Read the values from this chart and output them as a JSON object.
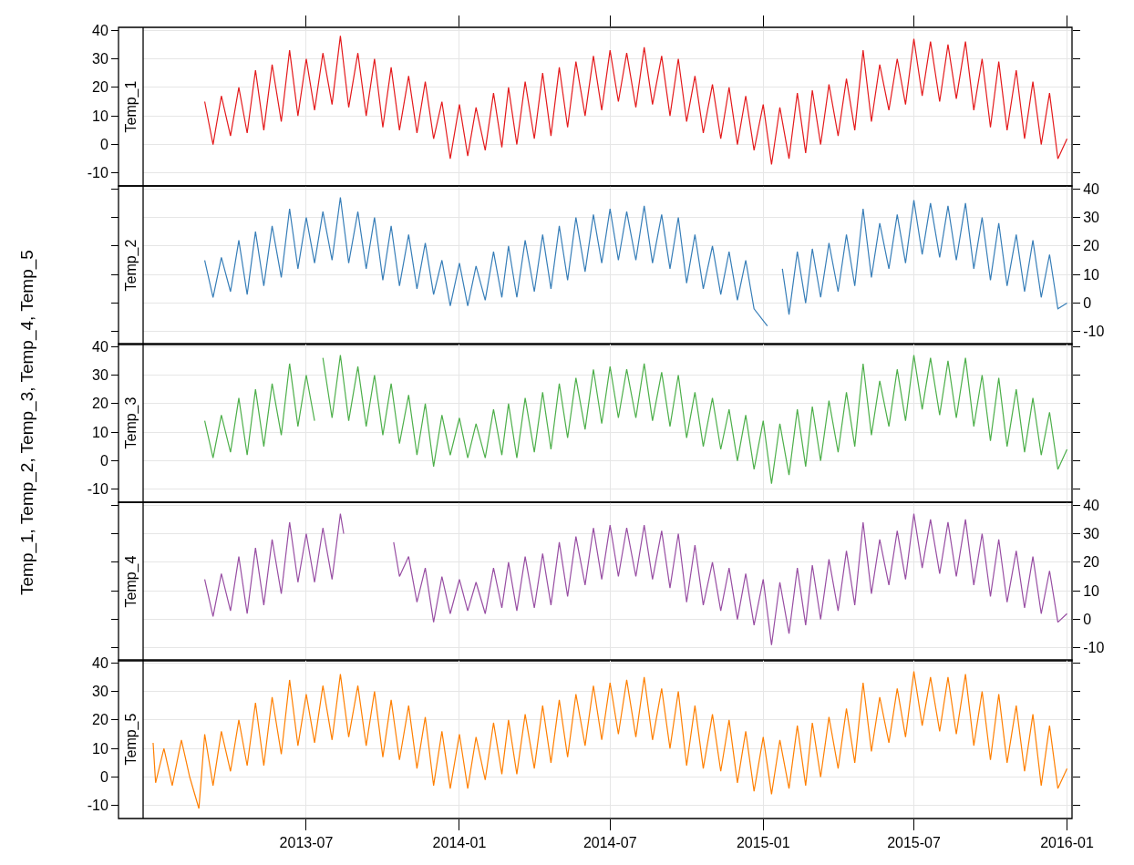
{
  "chart_data": [
    {
      "type": "line",
      "xlim": [
        "2012-12-17",
        "2016-01-07"
      ],
      "xticks": [
        "2013-07",
        "2014-01",
        "2014-07",
        "2015-01",
        "2015-07",
        "2016-01"
      ],
      "ylim": [
        -14.5,
        41
      ],
      "yticks": [
        -10,
        0,
        10,
        20,
        30,
        40
      ],
      "grid": true,
      "tick_labels": "y",
      "series": [
        {
          "name": "Temp_1",
          "color": "#e41a1c",
          "x": [
            "2013-03-01",
            "2013-03-11",
            "2013-03-21",
            "2013-04-01",
            "2013-04-11",
            "2013-04-21",
            "2013-05-01",
            "2013-05-11",
            "2013-05-21",
            "2013-06-01",
            "2013-06-11",
            "2013-06-21",
            "2013-07-01",
            "2013-07-11",
            "2013-07-21",
            "2013-08-01",
            "2013-08-11",
            "2013-08-21",
            "2013-09-01",
            "2013-09-11",
            "2013-09-21",
            "2013-10-01",
            "2013-10-11",
            "2013-10-21",
            "2013-11-01",
            "2013-11-11",
            "2013-11-21",
            "2013-12-01",
            "2013-12-11",
            "2013-12-21",
            "2014-01-01",
            "2014-01-11",
            "2014-01-21",
            "2014-02-01",
            "2014-02-11",
            "2014-02-21",
            "2014-03-01",
            "2014-03-11",
            "2014-03-21",
            "2014-04-01",
            "2014-04-11",
            "2014-04-21",
            "2014-05-01",
            "2014-05-11",
            "2014-05-21",
            "2014-06-01",
            "2014-06-11",
            "2014-06-21",
            "2014-07-01",
            "2014-07-11",
            "2014-07-21",
            "2014-08-01",
            "2014-08-11",
            "2014-08-21",
            "2014-09-01",
            "2014-09-11",
            "2014-09-21",
            "2014-10-01",
            "2014-10-11",
            "2014-10-21",
            "2014-11-01",
            "2014-11-11",
            "2014-11-21",
            "2014-12-01",
            "2014-12-11",
            "2014-12-21",
            "2015-01-01",
            "2015-01-11",
            "2015-01-21",
            "2015-02-01",
            "2015-02-11",
            "2015-02-21",
            "2015-03-01",
            "2015-03-11",
            "2015-03-21",
            "2015-04-01",
            "2015-04-11",
            "2015-04-21",
            "2015-05-01",
            "2015-05-11",
            "2015-05-21",
            "2015-06-01",
            "2015-06-11",
            "2015-06-21",
            "2015-07-01",
            "2015-07-11",
            "2015-07-21",
            "2015-08-01",
            "2015-08-11",
            "2015-08-21",
            "2015-09-01",
            "2015-09-11",
            "2015-09-21",
            "2015-10-01",
            "2015-10-11",
            "2015-10-21",
            "2015-11-01",
            "2015-11-11",
            "2015-11-21",
            "2015-12-01",
            "2015-12-11",
            "2015-12-21",
            "2016-01-01"
          ],
          "values": [
            15,
            0,
            17,
            3,
            20,
            4,
            26,
            5,
            28,
            8,
            33,
            10,
            30,
            12,
            32,
            14,
            38,
            13,
            32,
            10,
            30,
            6,
            27,
            5,
            24,
            4,
            22,
            2,
            15,
            -5,
            14,
            -4,
            13,
            -2,
            18,
            -1,
            20,
            0,
            22,
            2,
            25,
            3,
            27,
            6,
            29,
            10,
            31,
            12,
            33,
            15,
            32,
            13,
            34,
            14,
            31,
            10,
            30,
            8,
            24,
            4,
            21,
            2,
            20,
            0,
            17,
            -2,
            14,
            -7,
            13,
            -5,
            18,
            -3,
            19,
            0,
            21,
            3,
            23,
            5,
            33,
            8,
            28,
            12,
            30,
            14,
            37,
            17,
            36,
            15,
            35,
            16,
            36,
            12,
            30,
            6,
            29,
            5,
            26,
            2,
            22,
            0,
            18,
            -5,
            2
          ]
        }
      ]
    },
    {
      "type": "line",
      "xlim": [
        "2012-12-17",
        "2016-01-07"
      ],
      "xticks": [
        "2013-07",
        "2014-01",
        "2014-07",
        "2015-01",
        "2015-07",
        "2016-01"
      ],
      "y2lim": [
        -14.5,
        41
      ],
      "y2ticks": [
        -10,
        0,
        10,
        20,
        30,
        40
      ],
      "grid": true,
      "tick_labels": "y",
      "series": [
        {
          "name": "Temp_2",
          "color": "#377eb8",
          "axis": "y2",
          "x": [
            "2013-03-01",
            "2013-03-11",
            "2013-03-21",
            "2013-04-01",
            "2013-04-11",
            "2013-04-21",
            "2013-05-01",
            "2013-05-11",
            "2013-05-21",
            "2013-06-01",
            "2013-06-11",
            "2013-06-21",
            "2013-07-01",
            "2013-07-11",
            "2013-07-21",
            "2013-08-01",
            "2013-08-11",
            "2013-08-21",
            "2013-09-01",
            "2013-09-11",
            "2013-09-21",
            "2013-10-01",
            "2013-10-11",
            "2013-10-21",
            "2013-11-01",
            "2013-11-11",
            "2013-11-21",
            "2013-12-01",
            "2013-12-11",
            "2013-12-21",
            "2014-01-01",
            "2014-01-11",
            "2014-01-21",
            "2014-02-01",
            "2014-02-11",
            "2014-02-21",
            "2014-03-01",
            "2014-03-11",
            "2014-03-21",
            "2014-04-01",
            "2014-04-11",
            "2014-04-21",
            "2014-05-01",
            "2014-05-11",
            "2014-05-21",
            "2014-06-01",
            "2014-06-11",
            "2014-06-21",
            "2014-07-01",
            "2014-07-11",
            "2014-07-21",
            "2014-08-01",
            "2014-08-11",
            "2014-08-21",
            "2014-09-01",
            "2014-09-11",
            "2014-09-21",
            "2014-10-01",
            "2014-10-11",
            "2014-10-21",
            "2014-11-01",
            "2014-11-11",
            "2014-11-21",
            "2014-12-01",
            "2014-12-11",
            "2014-12-21",
            "2015-01-06",
            "2015-01-15",
            "2015-01-24",
            "2015-02-01",
            "2015-02-11",
            "2015-02-21",
            "2015-03-01",
            "2015-03-11",
            "2015-03-21",
            "2015-04-01",
            "2015-04-11",
            "2015-04-21",
            "2015-05-01",
            "2015-05-11",
            "2015-05-21",
            "2015-06-01",
            "2015-06-11",
            "2015-06-21",
            "2015-07-01",
            "2015-07-11",
            "2015-07-21",
            "2015-08-01",
            "2015-08-11",
            "2015-08-21",
            "2015-09-01",
            "2015-09-11",
            "2015-09-21",
            "2015-10-01",
            "2015-10-11",
            "2015-10-21",
            "2015-11-01",
            "2015-11-11",
            "2015-11-21",
            "2015-12-01",
            "2015-12-11",
            "2015-12-21",
            "2016-01-01"
          ],
          "values": [
            15,
            2,
            16,
            4,
            22,
            3,
            25,
            6,
            27,
            9,
            33,
            12,
            30,
            14,
            32,
            15,
            37,
            14,
            32,
            12,
            30,
            8,
            27,
            6,
            24,
            5,
            21,
            3,
            15,
            -1,
            14,
            -1,
            13,
            1,
            18,
            2,
            20,
            2,
            22,
            4,
            24,
            5,
            27,
            8,
            30,
            11,
            31,
            14,
            33,
            15,
            32,
            15,
            34,
            14,
            31,
            12,
            30,
            7,
            24,
            5,
            20,
            3,
            18,
            1,
            15,
            -2,
            -8,
            null,
            12,
            -4,
            18,
            0,
            19,
            2,
            21,
            4,
            24,
            6,
            33,
            9,
            28,
            12,
            31,
            14,
            36,
            17,
            35,
            16,
            34,
            15,
            35,
            12,
            30,
            8,
            28,
            6,
            24,
            4,
            22,
            2,
            17,
            -2,
            0
          ]
        }
      ]
    },
    {
      "type": "line",
      "ylabel": "Temp_1, Temp_2, Temp_3, Temp_4, Temp_5",
      "xlim": [
        "2012-12-17",
        "2016-01-07"
      ],
      "xticks": [
        "2013-07",
        "2014-01",
        "2014-07",
        "2015-01",
        "2015-07",
        "2016-01"
      ],
      "ylim": [
        -14.5,
        41
      ],
      "yticks": [
        -10,
        0,
        10,
        20,
        30,
        40
      ],
      "grid": true,
      "tick_labels": "y",
      "series": [
        {
          "name": "Temp_3",
          "color": "#4daf4a",
          "x": [
            "2013-03-01",
            "2013-03-11",
            "2013-03-21",
            "2013-04-01",
            "2013-04-11",
            "2013-04-21",
            "2013-05-01",
            "2013-05-11",
            "2013-05-21",
            "2013-06-01",
            "2013-06-11",
            "2013-06-21",
            "2013-07-01",
            "2013-07-11",
            "2013-07-15",
            "2013-07-21",
            "2013-08-01",
            "2013-08-11",
            "2013-08-21",
            "2013-09-01",
            "2013-09-11",
            "2013-09-21",
            "2013-10-01",
            "2013-10-11",
            "2013-10-21",
            "2013-11-01",
            "2013-11-11",
            "2013-11-21",
            "2013-12-01",
            "2013-12-11",
            "2013-12-21",
            "2014-01-01",
            "2014-01-11",
            "2014-01-21",
            "2014-02-01",
            "2014-02-11",
            "2014-02-21",
            "2014-03-01",
            "2014-03-11",
            "2014-03-21",
            "2014-04-01",
            "2014-04-11",
            "2014-04-21",
            "2014-05-01",
            "2014-05-11",
            "2014-05-21",
            "2014-06-01",
            "2014-06-11",
            "2014-06-21",
            "2014-07-01",
            "2014-07-11",
            "2014-07-21",
            "2014-08-01",
            "2014-08-11",
            "2014-08-21",
            "2014-09-01",
            "2014-09-11",
            "2014-09-21",
            "2014-10-01",
            "2014-10-11",
            "2014-10-21",
            "2014-11-01",
            "2014-11-11",
            "2014-11-21",
            "2014-12-01",
            "2014-12-11",
            "2014-12-21",
            "2015-01-01",
            "2015-01-11",
            "2015-01-21",
            "2015-02-01",
            "2015-02-11",
            "2015-02-21",
            "2015-03-01",
            "2015-03-11",
            "2015-03-21",
            "2015-04-01",
            "2015-04-11",
            "2015-04-21",
            "2015-05-01",
            "2015-05-11",
            "2015-05-21",
            "2015-06-01",
            "2015-06-11",
            "2015-06-21",
            "2015-07-01",
            "2015-07-11",
            "2015-07-21",
            "2015-08-01",
            "2015-08-11",
            "2015-08-21",
            "2015-09-01",
            "2015-09-11",
            "2015-09-21",
            "2015-10-01",
            "2015-10-11",
            "2015-10-21",
            "2015-11-01",
            "2015-11-11",
            "2015-11-21",
            "2015-12-01",
            "2015-12-11",
            "2015-12-21",
            "2016-01-01"
          ],
          "values": [
            14,
            1,
            16,
            3,
            22,
            2,
            25,
            5,
            27,
            9,
            34,
            12,
            30,
            14,
            null,
            36,
            15,
            37,
            14,
            33,
            12,
            30,
            9,
            27,
            6,
            23,
            2,
            20,
            -2,
            16,
            2,
            15,
            1,
            13,
            1,
            18,
            2,
            20,
            1,
            22,
            3,
            24,
            4,
            27,
            8,
            29,
            11,
            32,
            13,
            33,
            15,
            32,
            15,
            34,
            14,
            31,
            12,
            30,
            8,
            24,
            5,
            22,
            4,
            18,
            0,
            16,
            -3,
            14,
            -8,
            13,
            -5,
            18,
            -2,
            19,
            0,
            21,
            3,
            24,
            5,
            34,
            9,
            28,
            12,
            32,
            14,
            37,
            18,
            36,
            16,
            35,
            15,
            36,
            12,
            30,
            7,
            29,
            5,
            25,
            3,
            22,
            2,
            17,
            -3,
            4
          ]
        }
      ]
    },
    {
      "type": "line",
      "xlim": [
        "2012-12-17",
        "2016-01-07"
      ],
      "xticks": [
        "2013-07",
        "2014-01",
        "2014-07",
        "2015-01",
        "2015-07",
        "2016-01"
      ],
      "y2lim": [
        -14.5,
        41
      ],
      "y2ticks": [
        -10,
        0,
        10,
        20,
        30,
        40
      ],
      "grid": true,
      "tick_labels": "y",
      "series": [
        {
          "name": "Temp_4",
          "color": "#984ea3",
          "axis": "y2",
          "x": [
            "2013-03-01",
            "2013-03-11",
            "2013-03-21",
            "2013-04-01",
            "2013-04-11",
            "2013-04-21",
            "2013-05-01",
            "2013-05-11",
            "2013-05-21",
            "2013-06-01",
            "2013-06-11",
            "2013-06-21",
            "2013-07-01",
            "2013-07-11",
            "2013-07-21",
            "2013-08-01",
            "2013-08-11",
            "2013-08-15",
            "2013-09-15",
            "2013-10-14",
            "2013-10-21",
            "2013-11-01",
            "2013-11-11",
            "2013-11-21",
            "2013-12-01",
            "2013-12-11",
            "2013-12-21",
            "2014-01-01",
            "2014-01-11",
            "2014-01-21",
            "2014-02-01",
            "2014-02-11",
            "2014-02-21",
            "2014-03-01",
            "2014-03-11",
            "2014-03-21",
            "2014-04-01",
            "2014-04-11",
            "2014-04-21",
            "2014-05-01",
            "2014-05-11",
            "2014-05-21",
            "2014-06-01",
            "2014-06-11",
            "2014-06-21",
            "2014-07-01",
            "2014-07-11",
            "2014-07-21",
            "2014-08-01",
            "2014-08-11",
            "2014-08-21",
            "2014-09-01",
            "2014-09-11",
            "2014-09-21",
            "2014-10-01",
            "2014-10-11",
            "2014-10-21",
            "2014-11-01",
            "2014-11-11",
            "2014-11-21",
            "2014-12-01",
            "2014-12-11",
            "2014-12-21",
            "2015-01-01",
            "2015-01-11",
            "2015-01-21",
            "2015-02-01",
            "2015-02-11",
            "2015-02-21",
            "2015-03-01",
            "2015-03-11",
            "2015-03-21",
            "2015-04-01",
            "2015-04-11",
            "2015-04-21",
            "2015-05-01",
            "2015-05-11",
            "2015-05-21",
            "2015-06-01",
            "2015-06-11",
            "2015-06-21",
            "2015-07-01",
            "2015-07-11",
            "2015-07-21",
            "2015-08-01",
            "2015-08-11",
            "2015-08-21",
            "2015-09-01",
            "2015-09-11",
            "2015-09-21",
            "2015-10-01",
            "2015-10-11",
            "2015-10-21",
            "2015-11-01",
            "2015-11-11",
            "2015-11-21",
            "2015-12-01",
            "2015-12-11",
            "2015-12-21",
            "2016-01-01"
          ],
          "values": [
            14,
            1,
            16,
            3,
            22,
            2,
            25,
            5,
            28,
            9,
            34,
            13,
            30,
            13,
            32,
            14,
            37,
            30,
            null,
            27,
            15,
            22,
            6,
            18,
            -1,
            15,
            2,
            14,
            3,
            13,
            2,
            18,
            4,
            20,
            3,
            22,
            4,
            23,
            5,
            27,
            8,
            29,
            12,
            32,
            14,
            33,
            15,
            32,
            15,
            33,
            14,
            31,
            11,
            30,
            6,
            26,
            5,
            20,
            3,
            18,
            0,
            16,
            -2,
            14,
            -9,
            13,
            -5,
            18,
            -2,
            19,
            0,
            21,
            3,
            24,
            5,
            34,
            9,
            28,
            12,
            31,
            14,
            37,
            18,
            35,
            16,
            34,
            15,
            35,
            12,
            30,
            8,
            28,
            6,
            24,
            4,
            22,
            2,
            17,
            -1,
            2
          ]
        }
      ]
    },
    {
      "type": "line",
      "xlim": [
        "2012-12-17",
        "2016-01-07"
      ],
      "xticks": [
        "2013-07",
        "2014-01",
        "2014-07",
        "2015-01",
        "2015-07",
        "2016-01"
      ],
      "ylim": [
        -14.5,
        41
      ],
      "yticks": [
        -10,
        0,
        10,
        20,
        30,
        40
      ],
      "grid": true,
      "series": [
        {
          "name": "Temp_5",
          "color": "#ff7f00",
          "x": [
            "2012-12-29",
            "2013-01-01",
            "2013-01-11",
            "2013-01-21",
            "2013-02-01",
            "2013-02-11",
            "2013-02-22",
            "2013-03-01",
            "2013-03-11",
            "2013-03-21",
            "2013-04-01",
            "2013-04-11",
            "2013-04-21",
            "2013-05-01",
            "2013-05-11",
            "2013-05-21",
            "2013-06-01",
            "2013-06-11",
            "2013-06-21",
            "2013-07-01",
            "2013-07-11",
            "2013-07-21",
            "2013-08-01",
            "2013-08-11",
            "2013-08-21",
            "2013-09-01",
            "2013-09-11",
            "2013-09-21",
            "2013-10-01",
            "2013-10-11",
            "2013-10-21",
            "2013-11-01",
            "2013-11-11",
            "2013-11-21",
            "2013-12-01",
            "2013-12-11",
            "2013-12-21",
            "2014-01-01",
            "2014-01-11",
            "2014-01-21",
            "2014-02-01",
            "2014-02-11",
            "2014-02-21",
            "2014-03-01",
            "2014-03-11",
            "2014-03-21",
            "2014-04-01",
            "2014-04-11",
            "2014-04-21",
            "2014-05-01",
            "2014-05-11",
            "2014-05-21",
            "2014-06-01",
            "2014-06-11",
            "2014-06-21",
            "2014-07-01",
            "2014-07-11",
            "2014-07-21",
            "2014-08-01",
            "2014-08-11",
            "2014-08-21",
            "2014-09-01",
            "2014-09-11",
            "2014-09-21",
            "2014-10-01",
            "2014-10-11",
            "2014-10-21",
            "2014-11-01",
            "2014-11-11",
            "2014-11-21",
            "2014-12-01",
            "2014-12-11",
            "2014-12-21",
            "2015-01-01",
            "2015-01-11",
            "2015-01-21",
            "2015-02-01",
            "2015-02-11",
            "2015-02-21",
            "2015-03-01",
            "2015-03-11",
            "2015-03-21",
            "2015-04-01",
            "2015-04-11",
            "2015-04-21",
            "2015-05-01",
            "2015-05-11",
            "2015-05-21",
            "2015-06-01",
            "2015-06-11",
            "2015-06-21",
            "2015-07-01",
            "2015-07-11",
            "2015-07-21",
            "2015-08-01",
            "2015-08-11",
            "2015-08-21",
            "2015-09-01",
            "2015-09-11",
            "2015-09-21",
            "2015-10-01",
            "2015-10-11",
            "2015-10-21",
            "2015-11-01",
            "2015-11-11",
            "2015-11-21",
            "2015-12-01",
            "2015-12-11",
            "2015-12-21",
            "2016-01-01"
          ],
          "values": [
            12,
            -2,
            10,
            -3,
            13,
            0,
            -11,
            15,
            -3,
            16,
            2,
            20,
            4,
            26,
            4,
            28,
            8,
            34,
            11,
            29,
            12,
            32,
            13,
            36,
            14,
            32,
            11,
            30,
            7,
            27,
            6,
            25,
            3,
            21,
            -3,
            16,
            -4,
            15,
            -4,
            14,
            -1,
            19,
            1,
            20,
            1,
            22,
            3,
            25,
            5,
            27,
            7,
            29,
            11,
            32,
            13,
            33,
            15,
            34,
            14,
            35,
            13,
            31,
            10,
            30,
            4,
            25,
            3,
            22,
            2,
            20,
            -2,
            16,
            -5,
            14,
            -6,
            13,
            -4,
            18,
            -3,
            19,
            0,
            21,
            3,
            24,
            5,
            33,
            9,
            28,
            12,
            31,
            14,
            37,
            18,
            35,
            16,
            35,
            15,
            36,
            11,
            30,
            6,
            29,
            5,
            25,
            2,
            22,
            -3,
            18,
            -4,
            3
          ]
        }
      ]
    }
  ]
}
